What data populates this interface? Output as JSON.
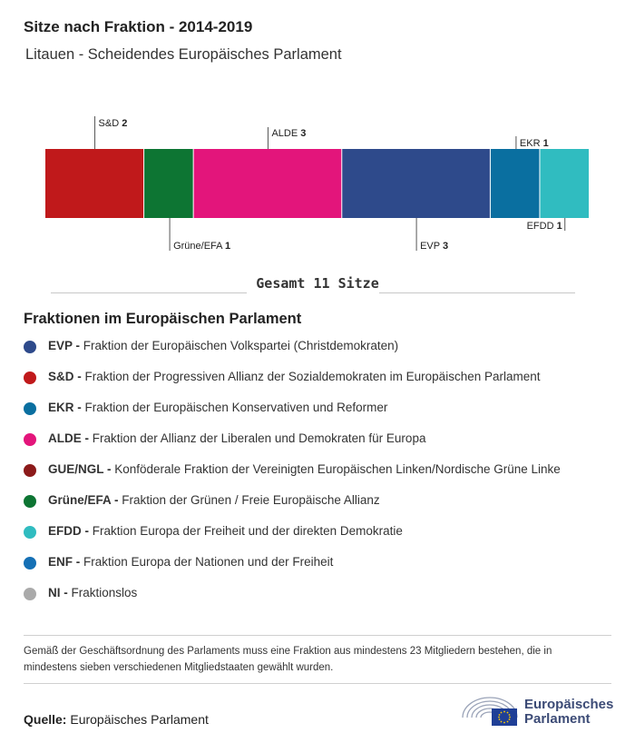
{
  "header": {
    "title": "Sitze nach Fraktion - 2014-2019",
    "subtitle": "Litauen - Scheidendes Europäisches Parlament"
  },
  "chart_data": {
    "type": "bar",
    "orientation": "stacked-horizontal",
    "categories": [
      "S&D",
      "Grüne/EFA",
      "ALDE",
      "EVP",
      "EKR",
      "EFDD"
    ],
    "values": [
      2,
      1,
      3,
      3,
      1,
      1
    ],
    "colors": [
      "#c0191b",
      "#0d7533",
      "#e3157b",
      "#2e4a8b",
      "#0a6fa0",
      "#30bcc0"
    ],
    "label_side": [
      "top",
      "bottom",
      "top",
      "bottom",
      "top",
      "bottom"
    ],
    "total_label": "Gesamt 11 Sitze"
  },
  "legend": {
    "title": "Fraktionen im Europäischen Parlament",
    "items": [
      {
        "abbr": "EVP -",
        "desc": "Fraktion der Europäischen Volkspartei (Christdemokraten)",
        "color": "#2e4a8b"
      },
      {
        "abbr": "S&D -",
        "desc": "Fraktion der Progressiven Allianz der Sozialdemokraten im Europäischen Parlament",
        "color": "#c0191b"
      },
      {
        "abbr": "EKR -",
        "desc": "Fraktion der Europäischen Konservativen und Reformer",
        "color": "#0a6fa0"
      },
      {
        "abbr": "ALDE -",
        "desc": "Fraktion der Allianz der Liberalen und Demokraten für Europa",
        "color": "#e3157b"
      },
      {
        "abbr": "GUE/NGL -",
        "desc": "Konföderale Fraktion der Vereinigten Europäischen Linken/Nordische Grüne Linke",
        "color": "#8c1a1a"
      },
      {
        "abbr": "Grüne/EFA -",
        "desc": "Fraktion der Grünen / Freie Europäische Allianz",
        "color": "#0d7533"
      },
      {
        "abbr": "EFDD -",
        "desc": "Fraktion Europa der Freiheit und der direkten Demokratie",
        "color": "#30bcc0"
      },
      {
        "abbr": "ENF -",
        "desc": "Fraktion Europa der Nationen und der Freiheit",
        "color": "#1570b5"
      },
      {
        "abbr": "NI -",
        "desc": "Fraktionslos",
        "color": "#aaaaaa"
      }
    ]
  },
  "footnote": "Gemäß der Geschäftsordnung des Parlaments muss eine Fraktion aus mindestens 23 Mitgliedern bestehen, die in mindestens sieben verschiedenen Mitgliedstaaten gewählt wurden.",
  "source": {
    "label": "Quelle:",
    "text": "Europäisches Parlament"
  },
  "logo": {
    "line1": "Europäisches",
    "line2": "Parlament"
  }
}
